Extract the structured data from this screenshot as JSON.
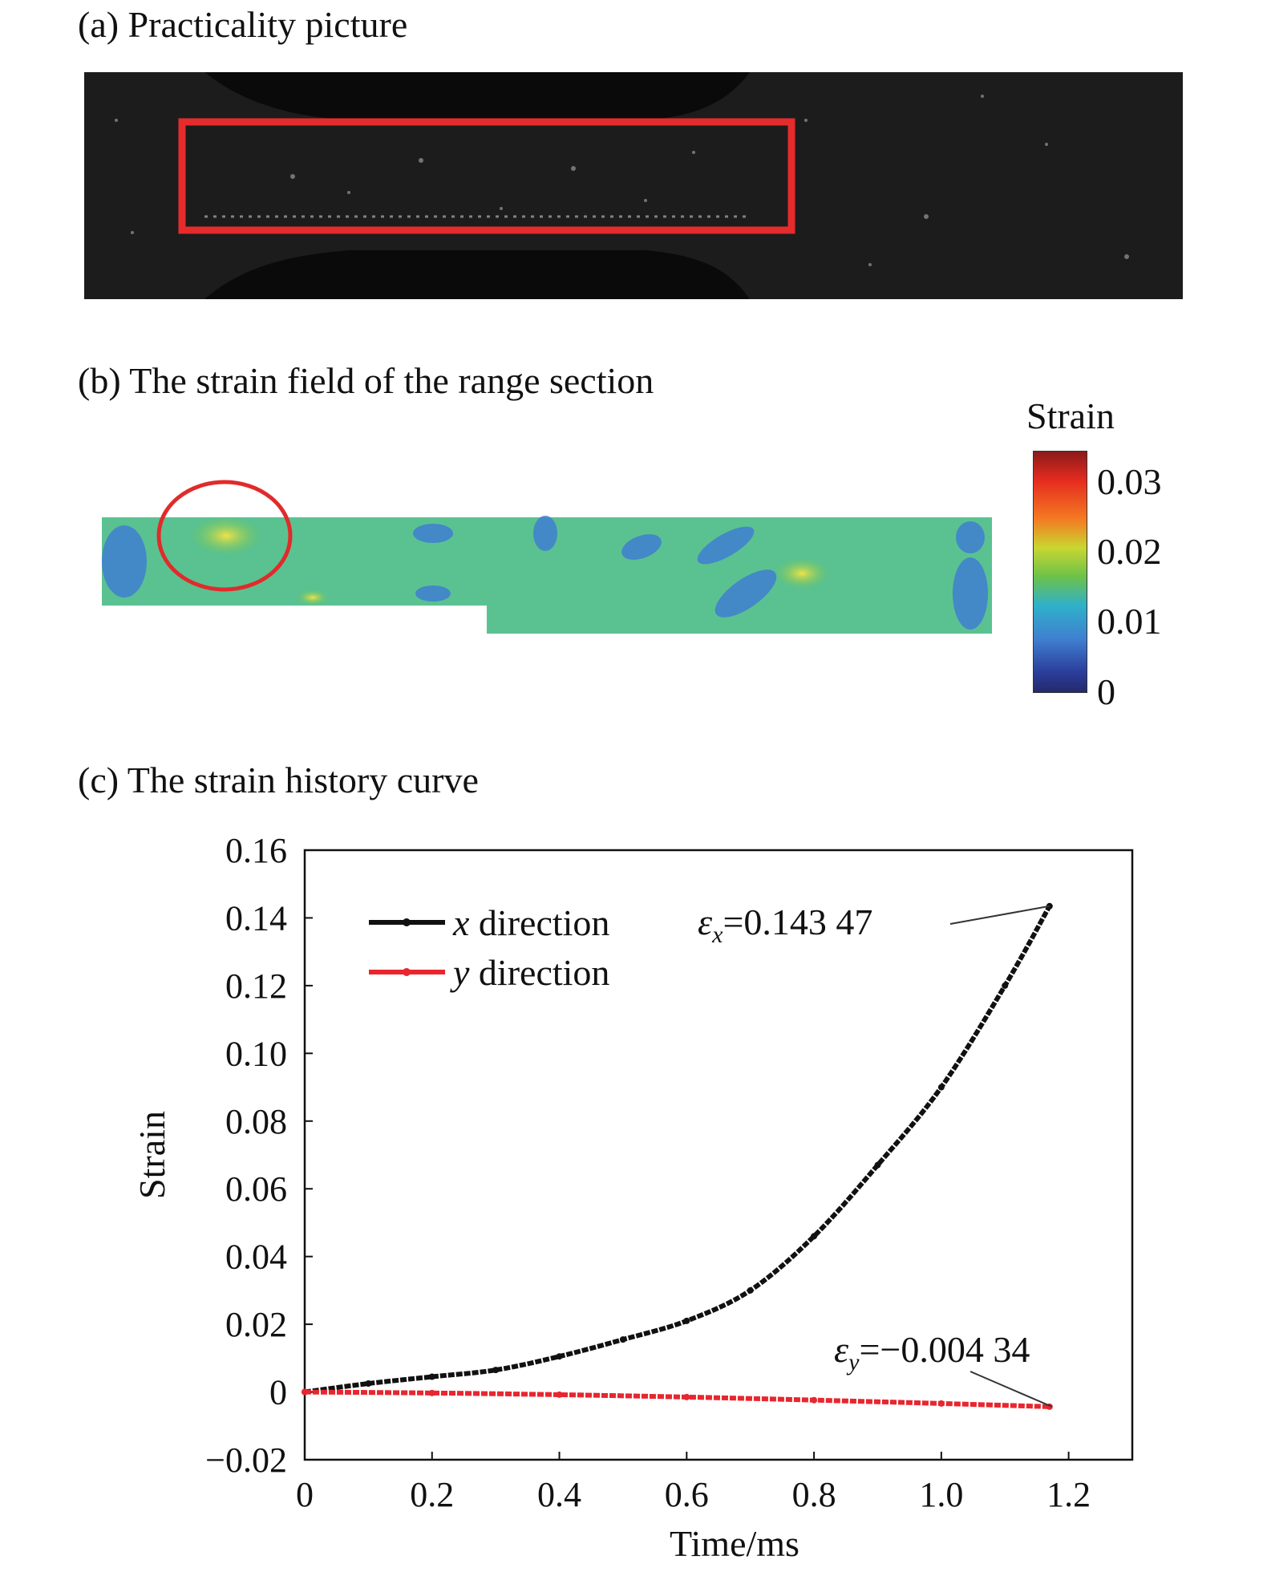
{
  "panels": {
    "a_title": "(a) Practicality picture",
    "b_title": "(b) The strain field of the range section",
    "c_title": "(c) The strain history curve"
  },
  "colorbar": {
    "title": "Strain",
    "ticks": [
      "0.03",
      "0.02",
      "0.01",
      "0"
    ],
    "colors": [
      "#8c1a1a",
      "#e52b1f",
      "#f47a22",
      "#c9d630",
      "#6cc24a",
      "#2fb1c9",
      "#3f7fd1",
      "#2b3c9a"
    ]
  },
  "chart_data": {
    "type": "line",
    "xlabel": "Time/ms",
    "ylabel": "Strain",
    "xlim": [
      0,
      1.3
    ],
    "ylim": [
      -0.02,
      0.16
    ],
    "xticks": [
      "0",
      "0.2",
      "0.4",
      "0.6",
      "0.8",
      "1.0",
      "1.2"
    ],
    "yticks": [
      "−0.02",
      "0",
      "0.02",
      "0.04",
      "0.06",
      "0.08",
      "0.10",
      "0.12",
      "0.14",
      "0.16"
    ],
    "series": [
      {
        "name": "x direction",
        "color": "#111111",
        "x": [
          0,
          0.1,
          0.2,
          0.3,
          0.4,
          0.5,
          0.6,
          0.7,
          0.8,
          0.9,
          1.0,
          1.1,
          1.17
        ],
        "y": [
          0,
          0.0025,
          0.0045,
          0.0065,
          0.0105,
          0.0155,
          0.021,
          0.03,
          0.046,
          0.067,
          0.09,
          0.12,
          0.14347
        ]
      },
      {
        "name": "y direction",
        "color": "#e8262f",
        "x": [
          0,
          0.2,
          0.4,
          0.6,
          0.8,
          1.0,
          1.17
        ],
        "y": [
          0,
          -0.0003,
          -0.0008,
          -0.0015,
          -0.0024,
          -0.0034,
          -0.00434
        ]
      }
    ],
    "legend_position": "top-left",
    "annotations": [
      {
        "symbol": "ε",
        "sub": "x",
        "text": "=0.143 47"
      },
      {
        "symbol": "ε",
        "sub": "y",
        "text": "=−0.004 34"
      }
    ]
  }
}
